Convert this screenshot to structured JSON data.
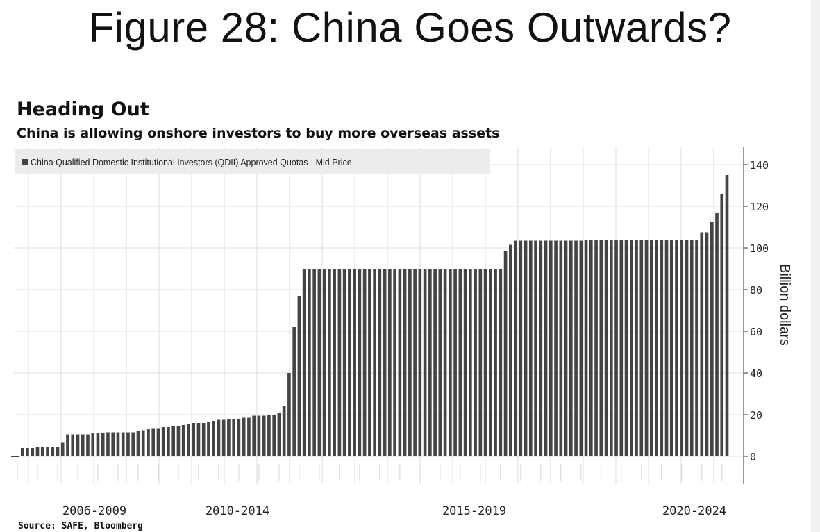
{
  "slide": {
    "title": "Figure 28: China Goes Outwards?"
  },
  "chart_data": {
    "type": "bar",
    "title": "Heading Out",
    "subtitle": "China is allowing onshore investors to buy more overseas assets",
    "source": "Source: SAFE, Bloomberg",
    "ylabel": "Billion dollars",
    "xlabel": "",
    "ylim": [
      -12,
      146
    ],
    "y_ticks": [
      0,
      20,
      40,
      60,
      80,
      100,
      120,
      140
    ],
    "x_category_labels": [
      "2006-2009",
      "2010-2014",
      "2015-2019",
      "2020-2024"
    ],
    "grid": true,
    "legend_position": "top-left",
    "series": [
      {
        "name": "China Qualified Domestic Institutional Investors (QDII) Approved Quotas - Mid Price",
        "color": "#444444",
        "values": [
          0.5,
          4,
          4,
          4,
          4.5,
          4.5,
          4.5,
          4.5,
          4.5,
          6.5,
          10.5,
          10.5,
          10.5,
          10.5,
          10.5,
          11,
          11,
          11,
          11.5,
          11.5,
          11.5,
          11.5,
          11.5,
          11.5,
          12,
          12.5,
          13,
          13.5,
          13.5,
          14,
          14,
          14.5,
          14.5,
          15,
          15.5,
          16,
          16,
          16,
          16.5,
          17,
          17.5,
          17.5,
          18,
          18,
          18,
          18.5,
          18.5,
          19.5,
          19.5,
          19.5,
          20,
          20,
          21,
          24,
          40,
          62,
          77,
          90,
          90,
          90,
          90,
          90,
          90,
          90,
          90,
          90,
          90,
          90,
          90,
          90,
          90,
          90,
          90,
          90,
          90,
          90,
          90,
          90,
          90,
          90,
          90,
          90,
          90,
          90,
          90,
          90,
          90,
          90,
          90,
          90,
          90,
          90,
          90,
          90,
          90,
          90,
          90,
          98.5,
          101.5,
          103.5,
          103.5,
          103.5,
          103.5,
          103.5,
          103.5,
          103.5,
          103.5,
          103.5,
          103.5,
          103.5,
          103.5,
          103.5,
          103.5,
          104,
          104,
          104,
          104,
          104,
          104,
          104,
          104,
          104,
          104,
          104,
          104,
          104,
          104,
          104,
          104,
          104,
          104,
          104,
          104,
          104,
          104,
          104,
          107.5,
          107.5,
          112.5,
          117,
          126,
          135
        ]
      }
    ]
  }
}
